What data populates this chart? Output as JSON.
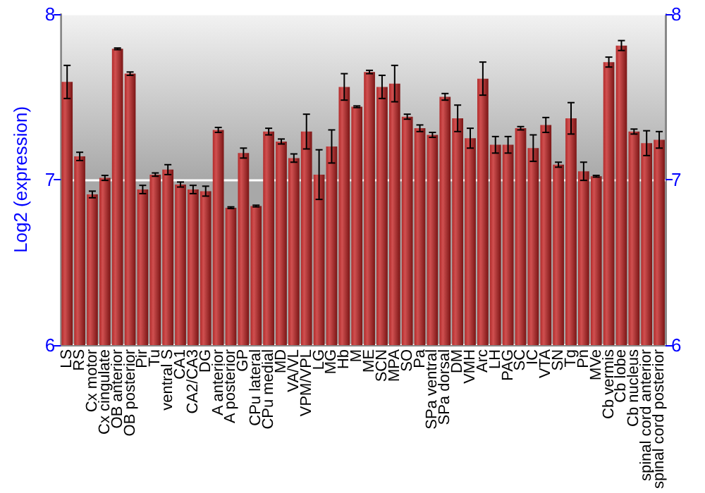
{
  "chart_data": {
    "type": "bar",
    "ylabel": "Log2 (expression)",
    "categories": [
      "LS",
      "RS",
      "Cx motor",
      "Cx cingulate",
      "OB anterior",
      "OB posterior",
      "Pir",
      "Tu",
      "ventral S",
      "CA1",
      "CA2/CA3",
      "DG",
      "A anterior",
      "A posterior",
      "GP",
      "CPu lateral",
      "CPu medial",
      "MD",
      "VA/VL",
      "VPM/VPL",
      "LG",
      "MG",
      "Hb",
      "M",
      "ME",
      "SCN",
      "MPA",
      "SO",
      "Pa",
      "SPa ventral",
      "SPa dorsal",
      "DM",
      "VMH",
      "Arc",
      "LH",
      "PAG",
      "SC",
      "IC",
      "VTA",
      "SN",
      "Tg",
      "Pn",
      "MVe",
      "Cb vermis",
      "Cb lobe",
      "Cb nucleus",
      "spinal cord anterior",
      "spinal cord posterior"
    ],
    "values": [
      7.59,
      7.14,
      6.91,
      7.01,
      7.79,
      7.64,
      6.94,
      7.03,
      7.06,
      6.97,
      6.94,
      6.93,
      7.3,
      6.83,
      7.16,
      6.84,
      7.29,
      7.23,
      7.13,
      7.29,
      7.03,
      7.2,
      7.56,
      7.44,
      7.65,
      7.56,
      7.58,
      7.38,
      7.31,
      7.27,
      7.5,
      7.37,
      7.25,
      7.61,
      7.21,
      7.21,
      7.31,
      7.19,
      7.33,
      7.09,
      7.37,
      7.05,
      7.02,
      7.71,
      7.81,
      7.29,
      7.22,
      7.24
    ],
    "errors": [
      0.1,
      0.025,
      0.02,
      0.015,
      0.005,
      0.01,
      0.025,
      0.01,
      0.03,
      0.015,
      0.025,
      0.03,
      0.015,
      0.005,
      0.03,
      0.005,
      0.02,
      0.015,
      0.025,
      0.105,
      0.15,
      0.1,
      0.08,
      0.005,
      0.01,
      0.07,
      0.11,
      0.015,
      0.02,
      0.015,
      0.02,
      0.08,
      0.06,
      0.1,
      0.05,
      0.05,
      0.01,
      0.08,
      0.045,
      0.015,
      0.095,
      0.055,
      0.005,
      0.03,
      0.03,
      0.015,
      0.075,
      0.05
    ],
    "color": "#b22a2a",
    "ylim": [
      6,
      8
    ],
    "yticks": [
      6,
      7,
      8
    ],
    "y2lim": [
      6,
      8
    ],
    "y2ticks": [
      6,
      7,
      8
    ],
    "grid": "y"
  }
}
